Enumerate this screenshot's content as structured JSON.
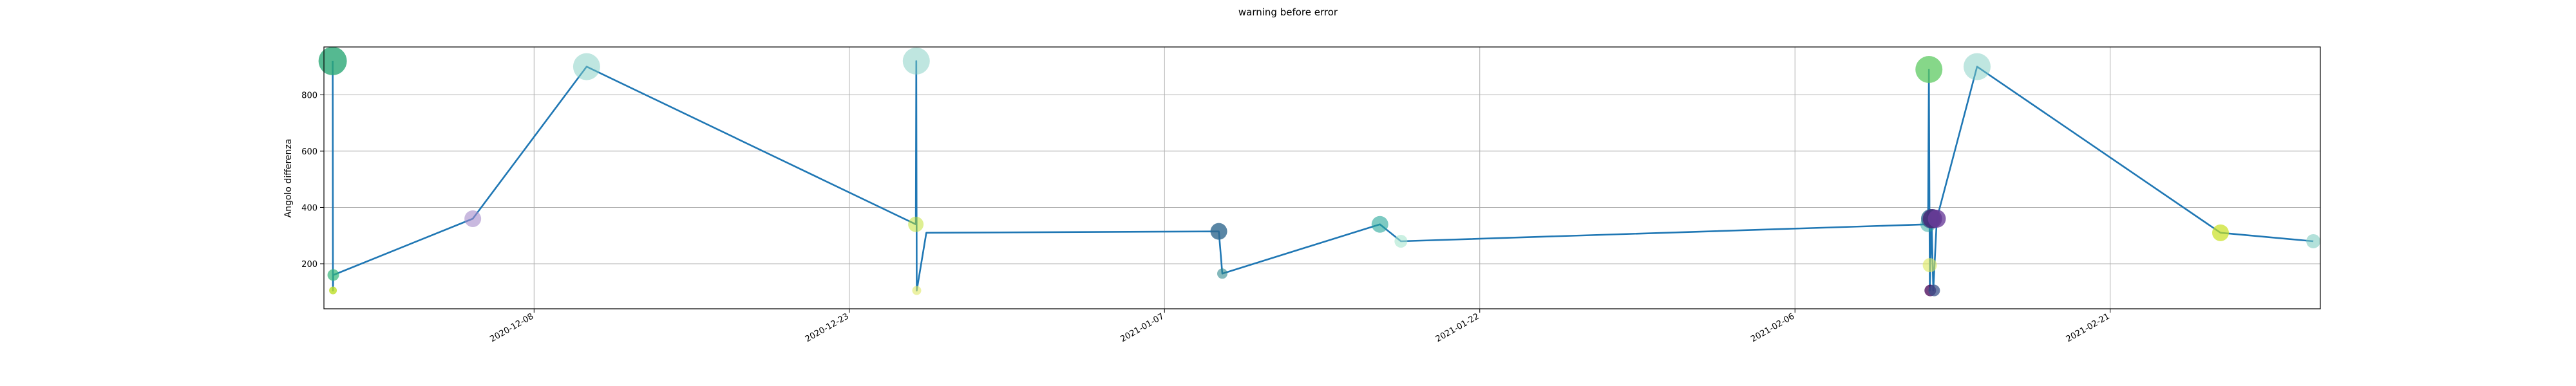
{
  "chart_data": {
    "type": "line",
    "title": "warning before error",
    "xlabel": "",
    "ylabel": "Angolo differenza",
    "grid": true,
    "x_ticks": [
      "2020-12-08",
      "2020-12-23",
      "2021-01-07",
      "2021-01-22",
      "2021-02-06",
      "2021-02-21"
    ],
    "y_ticks": [
      200,
      400,
      600,
      800
    ],
    "xlim": [
      "2020-11-28",
      "2021-03-03"
    ],
    "ylim": [
      40,
      970
    ],
    "series": [
      {
        "line_color": "#1f77b4",
        "points": [
          {
            "x": "2020-11-28 10:00",
            "y": 920
          },
          {
            "x": "2020-11-28 10:20",
            "y": 105
          },
          {
            "x": "2020-11-28 10:40",
            "y": 160
          },
          {
            "x": "2020-12-05 02:00",
            "y": 360
          },
          {
            "x": "2020-12-10 12:00",
            "y": 900
          },
          {
            "x": "2020-12-26 04:00",
            "y": 340
          },
          {
            "x": "2020-12-26 04:30",
            "y": 920
          },
          {
            "x": "2020-12-26 05:00",
            "y": 105
          },
          {
            "x": "2020-12-26 16:00",
            "y": 310
          },
          {
            "x": "2021-01-09 14:00",
            "y": 315
          },
          {
            "x": "2021-01-09 18:00",
            "y": 165
          },
          {
            "x": "2021-01-17 06:00",
            "y": 340
          },
          {
            "x": "2021-01-18 06:00",
            "y": 280
          },
          {
            "x": "2021-02-12 08:00",
            "y": 340
          },
          {
            "x": "2021-02-12 09:00",
            "y": 890
          },
          {
            "x": "2021-02-12 10:00",
            "y": 105
          },
          {
            "x": "2021-02-12 12:00",
            "y": 360
          },
          {
            "x": "2021-02-12 14:00",
            "y": 105
          },
          {
            "x": "2021-02-12 18:00",
            "y": 360
          },
          {
            "x": "2021-02-14 16:00",
            "y": 900
          },
          {
            "x": "2021-02-26 06:00",
            "y": 310
          },
          {
            "x": "2021-03-02 16:00",
            "y": 280
          }
        ]
      }
    ],
    "markers": [
      {
        "x": "2020-11-28 10:00",
        "y": 920,
        "size": 22,
        "color": "#2aa876",
        "opacity": 0.8
      },
      {
        "x": "2020-11-28 10:20",
        "y": 105,
        "size": 6,
        "color": "#bddf26",
        "opacity": 0.8
      },
      {
        "x": "2020-11-28 10:40",
        "y": 160,
        "size": 9,
        "color": "#35b779",
        "opacity": 0.7
      },
      {
        "x": "2020-12-05 02:00",
        "y": 360,
        "size": 13,
        "color": "#a58ac9",
        "opacity": 0.6
      },
      {
        "x": "2020-12-10 12:00",
        "y": 900,
        "size": 21,
        "color": "#80cdc1",
        "opacity": 0.5
      },
      {
        "x": "2020-12-26 04:00",
        "y": 340,
        "size": 12,
        "color": "#bddf26",
        "opacity": 0.5
      },
      {
        "x": "2020-12-26 04:30",
        "y": 920,
        "size": 21,
        "color": "#80cdc1",
        "opacity": 0.5
      },
      {
        "x": "2020-12-26 05:00",
        "y": 105,
        "size": 7,
        "color": "#e0e866",
        "opacity": 0.6
      },
      {
        "x": "2021-01-09 14:00",
        "y": 315,
        "size": 13,
        "color": "#31688e",
        "opacity": 0.8
      },
      {
        "x": "2021-01-09 18:00",
        "y": 165,
        "size": 8,
        "color": "#31888e",
        "opacity": 0.6
      },
      {
        "x": "2021-01-17 06:00",
        "y": 340,
        "size": 13,
        "color": "#26a69a",
        "opacity": 0.6
      },
      {
        "x": "2021-01-18 06:00",
        "y": 280,
        "size": 10,
        "color": "#a8e6cf",
        "opacity": 0.6
      },
      {
        "x": "2021-02-12 08:00",
        "y": 340,
        "size": 12,
        "color": "#26a69a",
        "opacity": 0.5
      },
      {
        "x": "2021-02-12 09:00",
        "y": 890,
        "size": 21,
        "color": "#5ec962",
        "opacity": 0.75
      },
      {
        "x": "2021-02-12 10:00",
        "y": 195,
        "size": 11,
        "color": "#dde95a",
        "opacity": 0.6
      },
      {
        "x": "2021-02-12 10:30",
        "y": 105,
        "size": 9,
        "color": "#440154",
        "opacity": 0.75
      },
      {
        "x": "2021-02-12 11:00",
        "y": 360,
        "size": 15,
        "color": "#31688e",
        "opacity": 0.8
      },
      {
        "x": "2021-02-12 13:00",
        "y": 360,
        "size": 15,
        "color": "#482878",
        "opacity": 0.85
      },
      {
        "x": "2021-02-12 15:00",
        "y": 105,
        "size": 9,
        "color": "#3b528b",
        "opacity": 0.75
      },
      {
        "x": "2021-02-12 18:00",
        "y": 360,
        "size": 14,
        "color": "#6a3d9a",
        "opacity": 0.8
      },
      {
        "x": "2021-02-14 16:00",
        "y": 900,
        "size": 21,
        "color": "#80cdc1",
        "opacity": 0.5
      },
      {
        "x": "2021-02-26 06:00",
        "y": 310,
        "size": 13,
        "color": "#c7e020",
        "opacity": 0.7
      },
      {
        "x": "2021-03-02 16:00",
        "y": 280,
        "size": 11,
        "color": "#80cdc1",
        "opacity": 0.6
      }
    ]
  }
}
